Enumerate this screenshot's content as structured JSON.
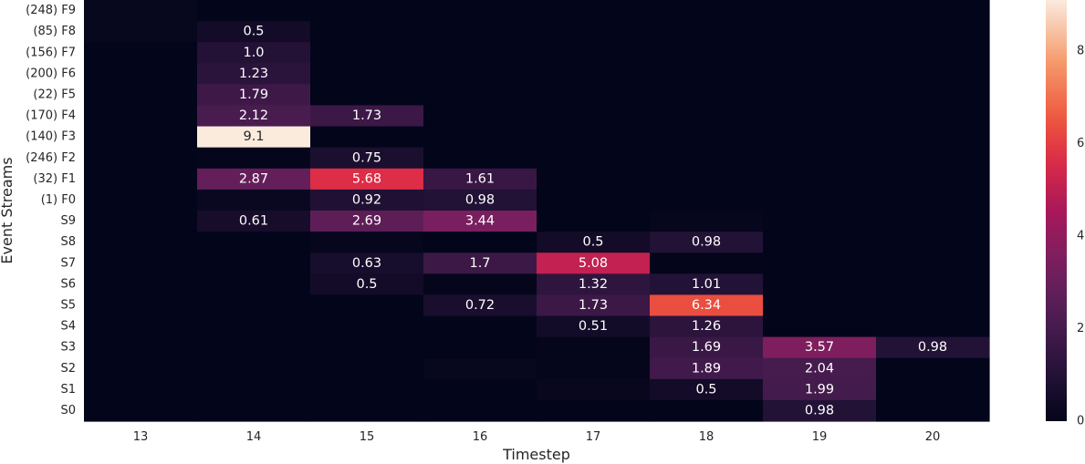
{
  "chart_data": {
    "type": "heatmap",
    "title": "",
    "xlabel": "Timestep",
    "ylabel": "Event Streams",
    "x": [
      "13",
      "14",
      "15",
      "16",
      "17",
      "18",
      "19",
      "20"
    ],
    "y": [
      "(248) F9",
      "(85) F8",
      "(156) F7",
      "(200) F6",
      "(22) F5",
      "(170) F4",
      "(140) F3",
      "(246) F2",
      "(32) F1",
      "(1) F0",
      "S9",
      "S8",
      "S7",
      "S6",
      "S5",
      "S4",
      "S3",
      "S2",
      "S1",
      "S0"
    ],
    "values": [
      [
        0.12,
        0,
        0,
        0,
        0,
        0,
        0,
        0
      ],
      [
        0.12,
        0.5,
        0,
        0,
        0,
        0,
        0,
        0
      ],
      [
        0,
        1.0,
        0,
        0,
        0,
        0,
        0,
        0
      ],
      [
        0,
        1.23,
        0,
        0,
        0,
        0,
        0,
        0
      ],
      [
        0,
        1.79,
        0,
        0,
        0,
        0,
        0,
        0
      ],
      [
        0,
        2.12,
        1.73,
        0,
        0,
        0,
        0,
        0
      ],
      [
        0,
        9.1,
        0,
        0,
        0,
        0,
        0,
        0
      ],
      [
        0,
        0.05,
        0.75,
        0,
        0,
        0,
        0,
        0
      ],
      [
        0,
        2.87,
        5.68,
        1.61,
        0,
        0,
        0,
        0
      ],
      [
        0,
        0.2,
        0.92,
        0.98,
        0,
        0,
        0,
        0
      ],
      [
        0,
        0.61,
        2.69,
        3.44,
        0,
        0.08,
        0,
        0
      ],
      [
        0,
        0,
        0.08,
        0,
        0.5,
        0.98,
        0,
        0
      ],
      [
        0,
        0,
        0.63,
        1.7,
        5.08,
        0.02,
        0,
        0
      ],
      [
        0,
        0,
        0.5,
        0.05,
        1.32,
        1.01,
        0,
        0
      ],
      [
        0,
        0,
        0,
        0.72,
        1.73,
        6.34,
        0,
        0
      ],
      [
        0,
        0,
        0,
        0,
        0.51,
        1.26,
        0,
        0
      ],
      [
        0,
        0,
        0,
        0,
        0.05,
        1.69,
        3.57,
        0.98
      ],
      [
        0,
        0,
        0,
        0.12,
        0.05,
        1.89,
        2.04,
        0
      ],
      [
        0,
        0,
        0,
        0,
        0.15,
        0.5,
        1.99,
        0
      ],
      [
        0,
        0,
        0,
        0,
        0,
        0,
        0.98,
        0
      ]
    ],
    "annotations": [
      [
        "",
        "",
        "",
        "",
        "",
        "",
        "",
        ""
      ],
      [
        "",
        "0.5",
        "",
        "",
        "",
        "",
        "",
        ""
      ],
      [
        "",
        "1.0",
        "",
        "",
        "",
        "",
        "",
        ""
      ],
      [
        "",
        "1.23",
        "",
        "",
        "",
        "",
        "",
        ""
      ],
      [
        "",
        "1.79",
        "",
        "",
        "",
        "",
        "",
        ""
      ],
      [
        "",
        "2.12",
        "1.73",
        "",
        "",
        "",
        "",
        ""
      ],
      [
        "",
        "9.1",
        "",
        "",
        "",
        "",
        "",
        ""
      ],
      [
        "",
        "",
        "0.75",
        "",
        "",
        "",
        "",
        ""
      ],
      [
        "",
        "2.87",
        "5.68",
        "1.61",
        "",
        "",
        "",
        ""
      ],
      [
        "",
        "",
        "0.92",
        "0.98",
        "",
        "",
        "",
        ""
      ],
      [
        "",
        "0.61",
        "2.69",
        "3.44",
        "",
        "",
        "",
        ""
      ],
      [
        "",
        "",
        "",
        "",
        "0.5",
        "0.98",
        "",
        ""
      ],
      [
        "",
        "",
        "0.63",
        "1.7",
        "5.08",
        "",
        "",
        ""
      ],
      [
        "",
        "",
        "0.5",
        "",
        "1.32",
        "1.01",
        "",
        ""
      ],
      [
        "",
        "",
        "",
        "0.72",
        "1.73",
        "6.34",
        "",
        ""
      ],
      [
        "",
        "",
        "",
        "",
        "0.51",
        "1.26",
        "",
        ""
      ],
      [
        "",
        "",
        "",
        "",
        "",
        "1.69",
        "3.57",
        "0.98"
      ],
      [
        "",
        "",
        "",
        "",
        "",
        "1.89",
        "2.04",
        ""
      ],
      [
        "",
        "",
        "",
        "",
        "",
        "0.5",
        "1.99",
        ""
      ],
      [
        "",
        "",
        "",
        "",
        "",
        "",
        "0.98",
        ""
      ]
    ],
    "colorbar": {
      "vmin": 0,
      "vmax": 9.1,
      "ticks": [
        "0",
        "2",
        "4",
        "6",
        "8"
      ],
      "colormap": "rocket"
    },
    "grid": false,
    "legend": "colorbar-right"
  }
}
